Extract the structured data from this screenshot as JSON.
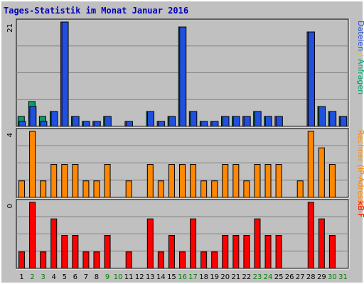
{
  "chart_data": [
    {
      "type": "bar",
      "title": "Tages-Statistik im Monat Januar 2016",
      "categories": [
        "1",
        "2",
        "3",
        "4",
        "5",
        "6",
        "7",
        "8",
        "9",
        "10",
        "11",
        "12",
        "13",
        "14",
        "15",
        "16",
        "17",
        "18",
        "19",
        "20",
        "21",
        "22",
        "23",
        "24",
        "25",
        "26",
        "27",
        "28",
        "29",
        "30",
        "31"
      ],
      "weekend_days": [
        "2",
        "3",
        "9",
        "10",
        "16",
        "17",
        "23",
        "24",
        "30",
        "31"
      ],
      "ytick": "21",
      "grid": true,
      "legend_label_parts": [
        {
          "text": "Dateien",
          "color": "#2050E0"
        },
        {
          "text": " / ",
          "color": "#DDDD00"
        },
        {
          "text": "Anfragen",
          "color": "#00A070"
        }
      ],
      "series": [
        {
          "name": "Anfragen",
          "color": "#00A070",
          "values": [
            2,
            5,
            2,
            3,
            21,
            2,
            1,
            1,
            2,
            0,
            1,
            0,
            3,
            1,
            2,
            20,
            3,
            1,
            1,
            2,
            2,
            2,
            3,
            2,
            2,
            0,
            0,
            19,
            4,
            3,
            2
          ]
        },
        {
          "name": "Dateien",
          "color": "#2050E0",
          "values": [
            1,
            4,
            1,
            3,
            21,
            2,
            1,
            1,
            2,
            0,
            1,
            0,
            3,
            1,
            2,
            20,
            3,
            1,
            1,
            2,
            2,
            2,
            3,
            2,
            2,
            0,
            0,
            19,
            4,
            3,
            2
          ]
        }
      ]
    },
    {
      "type": "bar",
      "categories": [
        "1",
        "2",
        "3",
        "4",
        "5",
        "6",
        "7",
        "8",
        "9",
        "10",
        "11",
        "12",
        "13",
        "14",
        "15",
        "16",
        "17",
        "18",
        "19",
        "20",
        "21",
        "22",
        "23",
        "24",
        "25",
        "26",
        "27",
        "28",
        "29",
        "30",
        "31"
      ],
      "ytick": "4",
      "grid": true,
      "legend_label_parts": [
        {
          "text": "Rechner (IP-Adressen)",
          "color": "#FF8800"
        }
      ],
      "series": [
        {
          "name": "Rechner (IP-Adressen)",
          "color": "#FF8800",
          "values": [
            1,
            4,
            1,
            2,
            2,
            2,
            1,
            1,
            2,
            0,
            1,
            0,
            2,
            1,
            2,
            2,
            2,
            1,
            1,
            2,
            2,
            1,
            2,
            2,
            2,
            0,
            1,
            4,
            3,
            2,
            0
          ]
        }
      ]
    },
    {
      "type": "bar",
      "categories": [
        "1",
        "2",
        "3",
        "4",
        "5",
        "6",
        "7",
        "8",
        "9",
        "10",
        "11",
        "12",
        "13",
        "14",
        "15",
        "16",
        "17",
        "18",
        "19",
        "20",
        "21",
        "22",
        "23",
        "24",
        "25",
        "26",
        "27",
        "28",
        "29",
        "30",
        "31"
      ],
      "ytick": "0",
      "grid": true,
      "legend_label_parts": [
        {
          "text": "kB F",
          "color": "#FF0000"
        }
      ],
      "series": [
        {
          "name": "kB F",
          "color": "#FF0000",
          "values": [
            1,
            4,
            1,
            3,
            2,
            2,
            1,
            1,
            2,
            0,
            1,
            0,
            3,
            1,
            2,
            1,
            3,
            1,
            1,
            2,
            2,
            2,
            3,
            2,
            2,
            0,
            0,
            4,
            3,
            2,
            0
          ]
        }
      ]
    }
  ],
  "colors": {
    "background": "#C0C0C0",
    "frame": "#FFFFFF",
    "title": "#0000BB",
    "weekday_label": "#000000",
    "weekend_label": "#008000"
  }
}
